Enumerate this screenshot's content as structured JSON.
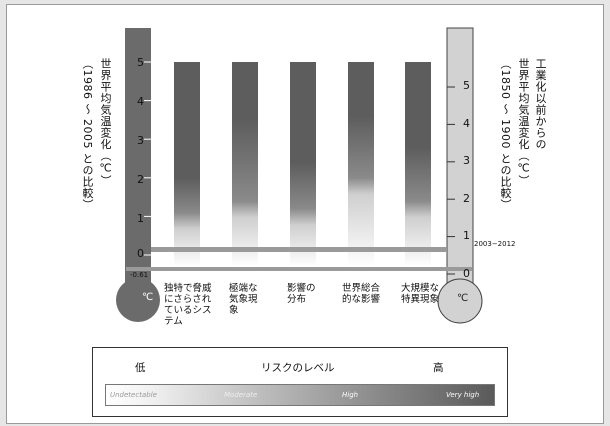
{
  "chart_data": {
    "type": "bar",
    "title": "",
    "y_left": {
      "label_main": "世界平均気温変化（℃）",
      "label_sub": "（1986 ～ 2005 との比較）",
      "ticks": [
        "5",
        "4",
        "3",
        "2",
        "1",
        "0",
        "-0.61"
      ],
      "range": [
        -0.61,
        5
      ],
      "unit": "℃"
    },
    "y_right": {
      "label_top": "工業化以前からの",
      "label_main": "世界平均気温変化（℃）",
      "label_sub": "（1850 ～ 1900 との比較）",
      "ticks": [
        "5",
        "4",
        "3",
        "2",
        "1",
        "0"
      ],
      "range": [
        0,
        5.61
      ],
      "unit": "℃",
      "annotation": "2003−2012"
    },
    "categories": [
      "独特で脅威にさらされているシステム",
      "極端な気象現象",
      "影響の分布",
      "世界総合的な影響",
      "大規模な特異現象"
    ],
    "series": [
      {
        "risk_transition_to_high": 1.1,
        "risk_transition_to_very_high": 2.0
      },
      {
        "risk_transition_to_high": 1.4,
        "risk_transition_to_very_high": 3.5
      },
      {
        "risk_transition_to_high": 1.2,
        "risk_transition_to_very_high": 2.4
      },
      {
        "risk_transition_to_high": 2.0,
        "risk_transition_to_very_high": 3.6
      },
      {
        "risk_transition_to_high": 1.4,
        "risk_transition_to_very_high": 2.8
      }
    ],
    "reference_lines": [
      0.0,
      0.78
    ],
    "legend": {
      "low": "低",
      "title": "リスクのレベル",
      "high": "高",
      "levels": [
        "Undetectable",
        "Moderate",
        "High",
        "Very high"
      ]
    },
    "colors": {
      "very_high": "#5d5d5d",
      "high": "#8a8a8a",
      "moderate": "#cfcfcf",
      "thermometer": "#6b6b6b",
      "thermometer_right": "#d2d2d2"
    }
  }
}
